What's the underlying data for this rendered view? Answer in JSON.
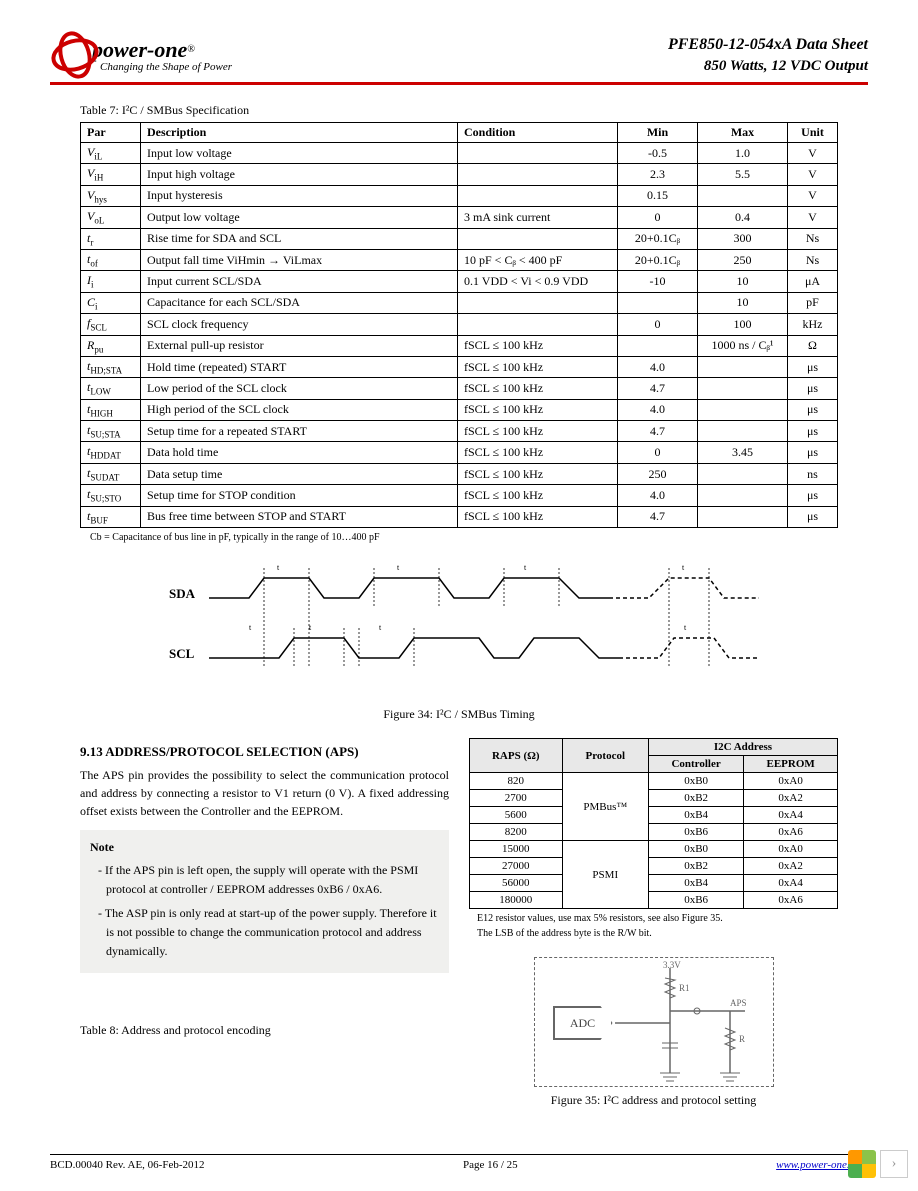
{
  "header": {
    "logo_text": "power-one",
    "logo_reg": "®",
    "logo_tagline": "Changing the Shape of Power",
    "title": "PFE850-12-054xA Data Sheet",
    "subtitle": "850 Watts, 12 VDC Output"
  },
  "table7": {
    "caption": "Table 7: I²C / SMBus Specification",
    "headers": [
      "Par",
      "Description",
      "Condition",
      "Min",
      "Max",
      "Unit"
    ],
    "rows": [
      {
        "par": "V",
        "sub": "iL",
        "desc": "Input low voltage",
        "cond": "",
        "min": "-0.5",
        "max": "1.0",
        "unit": "V"
      },
      {
        "par": "V",
        "sub": "iH",
        "desc": "Input high voltage",
        "cond": "",
        "min": "2.3",
        "max": "5.5",
        "unit": "V"
      },
      {
        "par": "V",
        "sub": "hys",
        "desc": "Input hysteresis",
        "cond": "",
        "min": "0.15",
        "max": "",
        "unit": "V"
      },
      {
        "par": "V",
        "sub": "oL",
        "desc": "Output low voltage",
        "cond": "3 mA sink current",
        "min": "0",
        "max": "0.4",
        "unit": "V"
      },
      {
        "par": "t",
        "sub": "r",
        "desc": "Rise time for SDA and SCL",
        "cond": "",
        "min": "20+0.1Cᵦ",
        "max": "300",
        "unit": "Ns"
      },
      {
        "par": "t",
        "sub": "of",
        "desc": "Output fall time ViHmin → ViLmax",
        "cond": "10 pF < Cᵦ < 400 pF",
        "min": "20+0.1Cᵦ",
        "max": "250",
        "unit": "Ns"
      },
      {
        "par": "I",
        "sub": "i",
        "desc": "Input current SCL/SDA",
        "cond": "0.1 VDD < Vi < 0.9 VDD",
        "min": "-10",
        "max": "10",
        "unit": "μA"
      },
      {
        "par": "C",
        "sub": "i",
        "desc": "Capacitance for each SCL/SDA",
        "cond": "",
        "min": "",
        "max": "10",
        "unit": "pF"
      },
      {
        "par": "f",
        "sub": "SCL",
        "desc": "SCL clock frequency",
        "cond": "",
        "min": "0",
        "max": "100",
        "unit": "kHz"
      },
      {
        "par": "R",
        "sub": "pu",
        "desc": "External pull-up resistor",
        "cond": "fSCL ≤ 100 kHz",
        "min": "",
        "max": "1000 ns / Cᵦ¹",
        "unit": "Ω"
      },
      {
        "par": "t",
        "sub": "HD;STA",
        "desc": "Hold time (repeated) START",
        "cond": "fSCL ≤ 100 kHz",
        "min": "4.0",
        "max": "",
        "unit": "μs"
      },
      {
        "par": "t",
        "sub": "LOW",
        "desc": "Low period of the SCL clock",
        "cond": "fSCL ≤ 100 kHz",
        "min": "4.7",
        "max": "",
        "unit": "μs"
      },
      {
        "par": "t",
        "sub": "HIGH",
        "desc": "High period of the SCL clock",
        "cond": "fSCL ≤ 100 kHz",
        "min": "4.0",
        "max": "",
        "unit": "μs"
      },
      {
        "par": "t",
        "sub": "SU;STA",
        "desc": "Setup time for a repeated START",
        "cond": "fSCL ≤ 100 kHz",
        "min": "4.7",
        "max": "",
        "unit": "μs"
      },
      {
        "par": "t",
        "sub": "HDDAT",
        "desc": "Data hold time",
        "cond": "fSCL ≤ 100 kHz",
        "min": "0",
        "max": "3.45",
        "unit": "μs"
      },
      {
        "par": "t",
        "sub": "SUDAT",
        "desc": "Data setup time",
        "cond": "fSCL ≤ 100 kHz",
        "min": "250",
        "max": "",
        "unit": "ns"
      },
      {
        "par": "t",
        "sub": "SU;STO",
        "desc": "Setup time for STOP condition",
        "cond": "fSCL ≤ 100 kHz",
        "min": "4.0",
        "max": "",
        "unit": "μs"
      },
      {
        "par": "t",
        "sub": "BUF",
        "desc": "Bus free time between STOP and START",
        "cond": "fSCL ≤ 100 kHz",
        "min": "4.7",
        "max": "",
        "unit": "μs"
      }
    ],
    "footnote": "Cb = Capacitance of bus line in pF, typically in the range of 10…400 pF"
  },
  "fig34_caption": "Figure 34: I²C / SMBus Timing",
  "timing_labels": {
    "sda": "SDA",
    "scl": "SCL"
  },
  "section913": {
    "heading": "9.13 ADDRESS/PROTOCOL SELECTION (APS)",
    "paragraph": "The APS pin provides the possibility to select the communication protocol and address by connecting a resistor to V1 return (0 V). A fixed addressing offset exists between the Controller and the EEPROM.",
    "note_heading": "Note",
    "note_items": [
      "- If the APS pin is left open, the supply will operate with the PSMI protocol at controller / EEPROM addresses 0xB6 / 0xA6.",
      "- The ASP pin is only read at start-up of the power supply. Therefore it is not possible to change the communication protocol and address dynamically."
    ]
  },
  "addr_table": {
    "headers": {
      "r": "RAPS (Ω)",
      "proto": "Protocol",
      "i2c": "I2C Address",
      "ctrl": "Controller",
      "eep": "EEPROM"
    },
    "rows": [
      {
        "r": "820",
        "proto": "PMBus™",
        "ctrl": "0xB0",
        "eep": "0xA0"
      },
      {
        "r": "2700",
        "proto": "",
        "ctrl": "0xB2",
        "eep": "0xA2"
      },
      {
        "r": "5600",
        "proto": "",
        "ctrl": "0xB4",
        "eep": "0xA4"
      },
      {
        "r": "8200",
        "proto": "",
        "ctrl": "0xB6",
        "eep": "0xA6"
      },
      {
        "r": "15000",
        "proto": "PSMI",
        "ctrl": "0xB0",
        "eep": "0xA0"
      },
      {
        "r": "27000",
        "proto": "",
        "ctrl": "0xB2",
        "eep": "0xA2"
      },
      {
        "r": "56000",
        "proto": "",
        "ctrl": "0xB4",
        "eep": "0xA4"
      },
      {
        "r": "180000",
        "proto": "",
        "ctrl": "0xB6",
        "eep": "0xA6"
      }
    ],
    "note1": "E12 resistor values, use max 5% resistors, see also Figure 35.",
    "note2": "The LSB of the address byte is the R/W bit."
  },
  "circuit": {
    "adc": "ADC",
    "v": "3.3V",
    "r1": "R1",
    "aps": "APS",
    "r": "R"
  },
  "fig35_caption": "Figure 35: I²C address and protocol setting",
  "table8_caption": "Table 8: Address and protocol encoding",
  "footer": {
    "left": "BCD.00040 Rev. AE, 06-Feb-2012",
    "center": "Page 16 / 25",
    "right": "www.power-one.com"
  }
}
